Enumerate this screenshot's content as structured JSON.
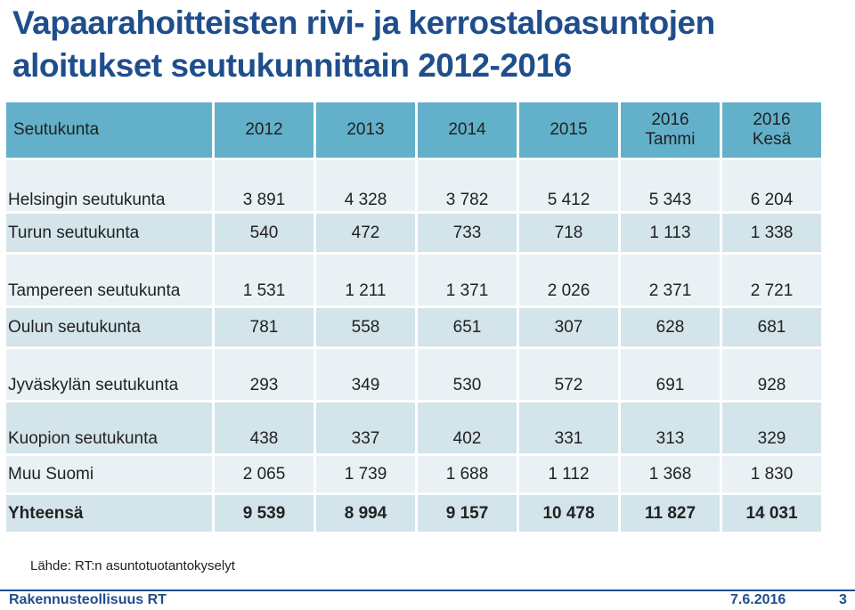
{
  "title": {
    "line1": "Vapaarahoitteisten rivi- ja kerrostaloasuntojen",
    "line2": "aloitukset seutukunnittain 2012-2016"
  },
  "table": {
    "headers": [
      {
        "line1": "Seutukunta",
        "line2": ""
      },
      {
        "line1": "2012",
        "line2": ""
      },
      {
        "line1": "2013",
        "line2": ""
      },
      {
        "line1": "2014",
        "line2": ""
      },
      {
        "line1": "2015",
        "line2": ""
      },
      {
        "line1": "2016",
        "line2": "Tammi"
      },
      {
        "line1": "2016",
        "line2": "Kesä"
      }
    ],
    "rows": [
      {
        "label": "Helsingin seutukunta",
        "values": [
          "3 891",
          "4 328",
          "3 782",
          "5 412",
          "5 343",
          "6 204"
        ]
      },
      {
        "label": "Turun seutukunta",
        "values": [
          "540",
          "472",
          "733",
          "718",
          "1 113",
          "1 338"
        ]
      },
      {
        "label": "Tampereen seutukunta",
        "values": [
          "1 531",
          "1 211",
          "1 371",
          "2 026",
          "2 371",
          "2 721"
        ]
      },
      {
        "label": "Oulun seutukunta",
        "values": [
          "781",
          "558",
          "651",
          "307",
          "628",
          "681"
        ]
      },
      {
        "label": "Jyväskylän seutukunta",
        "values": [
          "293",
          "349",
          "530",
          "572",
          "691",
          "928"
        ]
      },
      {
        "label": "Kuopion seutukunta",
        "values": [
          "438",
          "337",
          "402",
          "331",
          "313",
          "329"
        ]
      },
      {
        "label": "Muu Suomi",
        "values": [
          "2 065",
          "1 739",
          "1 688",
          "1 112",
          "1 368",
          "1 830"
        ]
      }
    ],
    "total": {
      "label": "Yhteensä",
      "values": [
        "9 539",
        "8 994",
        "9 157",
        "10 478",
        "11 827",
        "14 031"
      ]
    }
  },
  "source": "Lähde: RT:n asuntotuotantokyselyt",
  "footer": {
    "organization": "Rakennusteollisuus RT",
    "date": "7.6.2016",
    "page": "3"
  },
  "colors": {
    "title": "#1f4e8c",
    "header_bg": "#62b0c9",
    "row_light": "#e9f1f4",
    "row_dark": "#d3e4ea"
  }
}
